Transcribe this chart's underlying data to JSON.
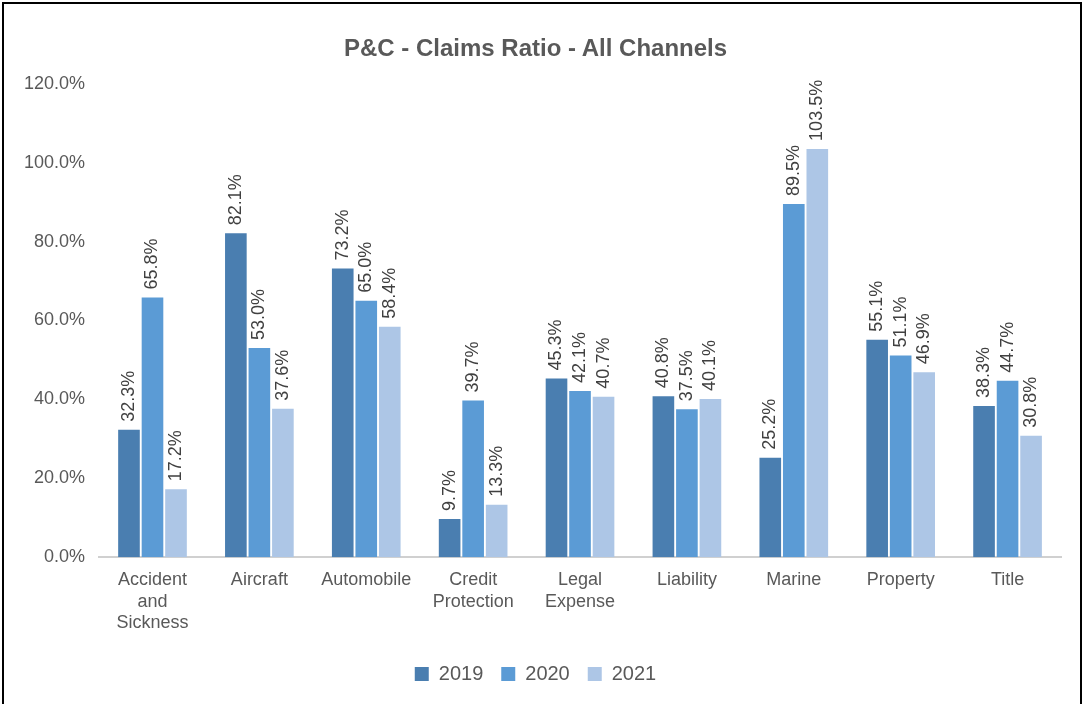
{
  "chart_data": {
    "type": "bar",
    "title": "P&C - Claims Ratio - All Channels",
    "categories": [
      "Accident and Sickness",
      "Aircraft",
      "Automobile",
      "Credit Protection",
      "Legal Expense",
      "Liability",
      "Marine",
      "Property",
      "Title"
    ],
    "series": [
      {
        "name": "2019",
        "color": "#4a7eb0",
        "values": [
          32.3,
          82.1,
          73.2,
          9.7,
          45.3,
          40.8,
          25.2,
          55.1,
          38.3
        ],
        "value_labels": [
          "32.3%",
          "82.1%",
          "73.2%",
          "9.7%",
          "45.3%",
          "40.8%",
          "25.2%",
          "55.1%",
          "38.3%"
        ]
      },
      {
        "name": "2020",
        "color": "#5b9bd5",
        "values": [
          65.8,
          53.0,
          65.0,
          39.7,
          42.1,
          37.5,
          89.5,
          51.1,
          44.7
        ],
        "value_labels": [
          "65.8%",
          "53.0%",
          "65.0%",
          "39.7%",
          "42.1%",
          "37.5%",
          "89.5%",
          "51.1%",
          "44.7%"
        ]
      },
      {
        "name": "2021",
        "color": "#adc6e6",
        "values": [
          17.2,
          37.6,
          58.4,
          13.3,
          40.7,
          40.1,
          103.5,
          46.9,
          30.8
        ],
        "value_labels": [
          "17.2%",
          "37.6%",
          "58.4%",
          "13.3%",
          "40.7%",
          "40.1%",
          "103.5%",
          "46.9%",
          "30.8%"
        ]
      }
    ],
    "ylim": [
      0,
      120
    ],
    "yticks": [
      {
        "value": 0,
        "label": "0.0%"
      },
      {
        "value": 20,
        "label": "20.0%"
      },
      {
        "value": 40,
        "label": "40.0%"
      },
      {
        "value": 60,
        "label": "60.0%"
      },
      {
        "value": 80,
        "label": "80.0%"
      },
      {
        "value": 100,
        "label": "100.0%"
      },
      {
        "value": 120,
        "label": "120.0%"
      }
    ],
    "grid": false,
    "legend": "bottom"
  }
}
